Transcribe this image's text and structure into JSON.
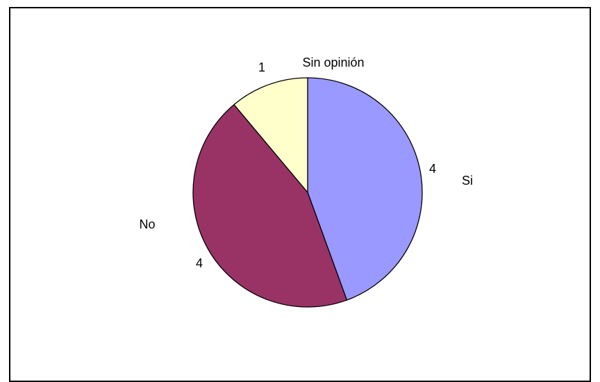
{
  "chart_data": {
    "type": "pie",
    "categories": [
      "Si",
      "No",
      "Sin opinión"
    ],
    "values": [
      4,
      4,
      1
    ],
    "colors": [
      "#9999ff",
      "#993366",
      "#ffffcc"
    ],
    "data_labels": [
      "4",
      "4",
      "1"
    ],
    "legend": "none",
    "title": "",
    "start": "12 o'clock",
    "direction": "clockwise"
  }
}
